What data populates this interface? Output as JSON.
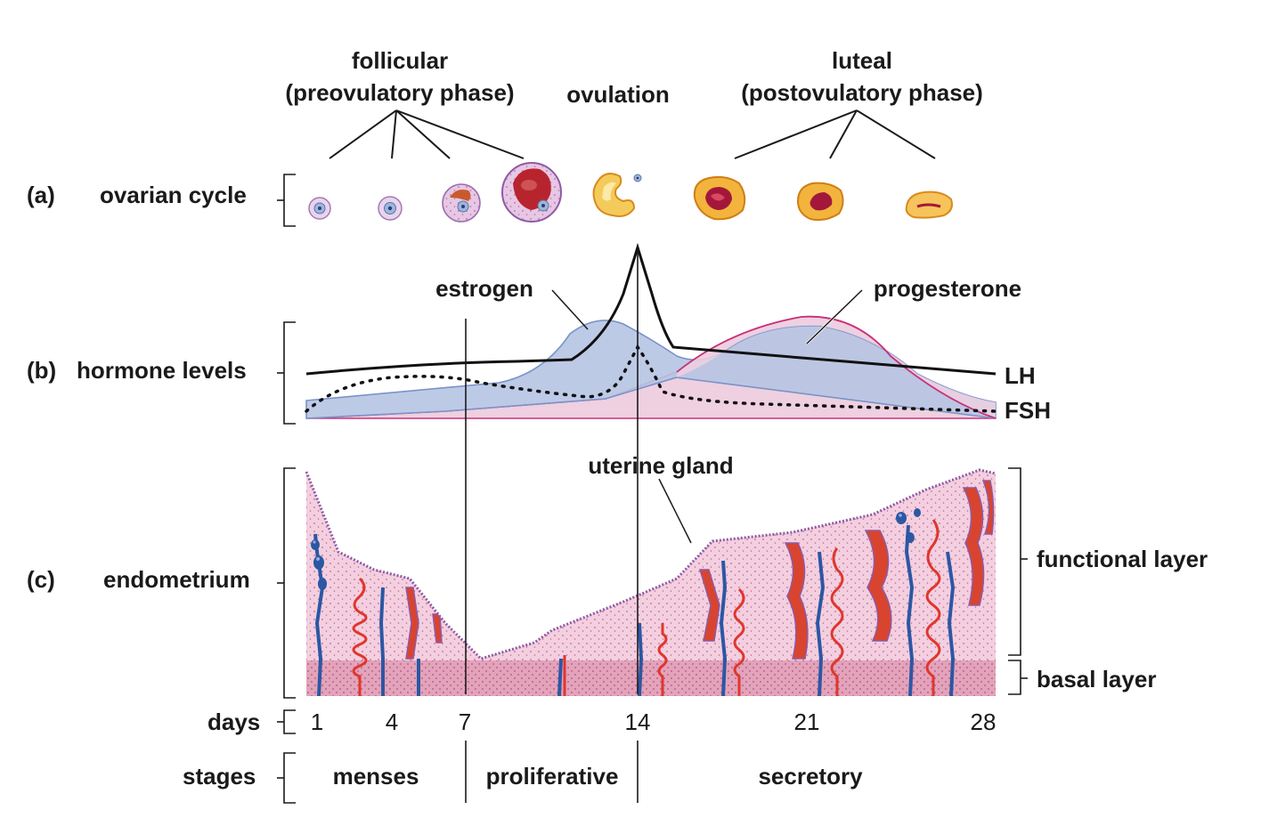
{
  "phases": {
    "follicular_line1": "follicular",
    "follicular_line2": "(preovulatory phase)",
    "ovulation": "ovulation",
    "luteal_line1": "luteal",
    "luteal_line2": "(postovulatory phase)"
  },
  "rows": {
    "a_letter": "(a)",
    "a_label": "ovarian cycle",
    "b_letter": "(b)",
    "b_label": "hormone levels",
    "c_letter": "(c)",
    "c_label": "endometrium",
    "days_label": "days",
    "stages_label": "stages"
  },
  "hormones": {
    "estrogen": "estrogen",
    "progesterone": "progesterone",
    "lh": "LH",
    "fsh": "FSH"
  },
  "endometrium": {
    "uterine_gland": "uterine gland",
    "functional_layer": "functional layer",
    "basal_layer": "basal layer"
  },
  "days": [
    "1",
    "4",
    "7",
    "14",
    "21",
    "28"
  ],
  "stages": {
    "menses": "menses",
    "proliferative": "proliferative",
    "secretory": "secretory"
  },
  "colors": {
    "estrogen_fill": "#b6c4e3",
    "estrogen_stroke": "#7a93c9",
    "progesterone_fill": "#eed0e0",
    "progesterone_stroke": "#c8327a",
    "tissue_pink": "#f3cfe0",
    "basal_pink": "#e2a3bb",
    "artery_red": "#e0362c",
    "vein_blue": "#2c57a3",
    "follicle_red": "#b8242e",
    "corpus_yellow": "#f2b43c"
  }
}
